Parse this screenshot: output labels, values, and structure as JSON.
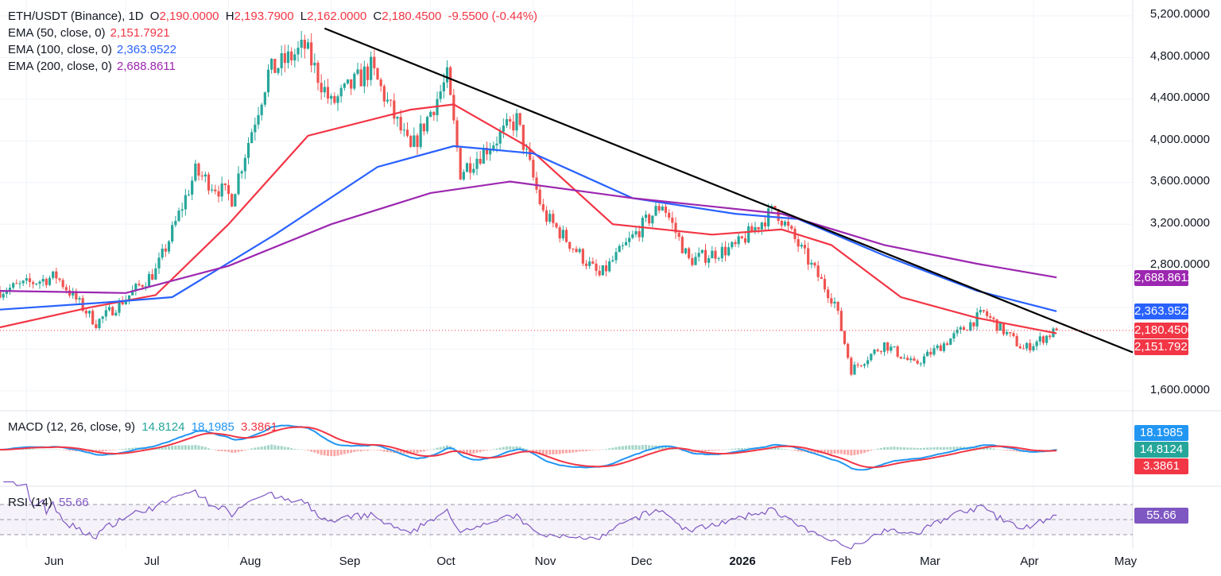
{
  "colors": {
    "up": "#26a69a",
    "down": "#ef5350",
    "ema50": "#f23645",
    "ema100": "#2962ff",
    "ema200": "#9c27b0",
    "trendline": "#000000",
    "macd": "#2196f3",
    "signal": "#f23645",
    "rsi": "#7e57c2"
  },
  "header": {
    "symbol": "ETH/USDT (Binance), 1D",
    "o_label": "O",
    "o": "2,190.0000",
    "h_label": "H",
    "h": "2,193.7900",
    "l_label": "L",
    "l": "2,162.0000",
    "c_label": "C",
    "c": "2,180.4500",
    "change": "-9.5500 (-0.44%)"
  },
  "indicators": {
    "ema50": {
      "label": "EMA (50, close, 0)",
      "value": "2,151.7921"
    },
    "ema100": {
      "label": "EMA (100, close, 0)",
      "value": "2,363.9522"
    },
    "ema200": {
      "label": "EMA (200, close, 0)",
      "value": "2,688.8611"
    },
    "macd": {
      "label": "MACD (12, 26, close, 9)",
      "hist": "14.8124",
      "macd": "18.1985",
      "signal": "3.3861"
    },
    "rsi": {
      "label": "RSI (14)",
      "value": "55.66"
    }
  },
  "price_axis": [
    "5,200.0000",
    "4,800.0000",
    "4,400.0000",
    "4,000.0000",
    "3,600.0000",
    "3,200.0000",
    "2,800.0000",
    "1,600.0000"
  ],
  "badges": {
    "ema200": "2,688.8611",
    "ema100": "2,363.9522",
    "close": "2,180.4500",
    "ema50": "2,151.7921",
    "macd": "18.1985",
    "hist": "14.8124",
    "signal": "3.3861",
    "rsi": "55.66"
  },
  "time_axis": [
    "Jun",
    "Jul",
    "Aug",
    "Sep",
    "Oct",
    "Nov",
    "Dec",
    "2026",
    "Feb",
    "Mar",
    "Apr",
    "May"
  ],
  "chart_data": {
    "type": "candlestick",
    "title": "ETH/USDT (Binance), 1D",
    "y_range": [
      1500,
      5250
    ],
    "x_range": [
      "2025-05-24",
      "2026-05-01"
    ],
    "close": {
      "value": 2180.45
    },
    "price_points": [
      [
        "2025-05-24",
        2560
      ],
      [
        "2025-06-10",
        2700
      ],
      [
        "2025-06-22",
        2250
      ],
      [
        "2025-07-01",
        2490
      ],
      [
        "2025-07-10",
        2750
      ],
      [
        "2025-07-14",
        3050
      ],
      [
        "2025-07-22",
        3700
      ],
      [
        "2025-08-02",
        3450
      ],
      [
        "2025-08-13",
        4650
      ],
      [
        "2025-08-24",
        4900
      ],
      [
        "2025-09-01",
        4350
      ],
      [
        "2025-09-13",
        4700
      ],
      [
        "2025-09-25",
        3900
      ],
      [
        "2025-10-06",
        4600
      ],
      [
        "2025-10-10",
        3700
      ],
      [
        "2025-10-27",
        4200
      ],
      [
        "2025-11-04",
        3300
      ],
      [
        "2025-11-21",
        2700
      ],
      [
        "2025-12-03",
        3150
      ],
      [
        "2025-12-10",
        3400
      ],
      [
        "2025-12-18",
        2850
      ],
      [
        "2026-01-01",
        2980
      ],
      [
        "2026-01-13",
        3350
      ],
      [
        "2026-01-22",
        2900
      ],
      [
        "2026-01-31",
        2450
      ],
      [
        "2026-02-05",
        1800
      ],
      [
        "2026-02-15",
        2050
      ],
      [
        "2026-02-24",
        1850
      ],
      [
        "2026-03-07",
        2100
      ],
      [
        "2026-03-17",
        2350
      ],
      [
        "2026-03-29",
        2000
      ],
      [
        "2026-04-08",
        2180
      ]
    ],
    "series": [
      {
        "name": "EMA (50, close, 0)",
        "points": [
          [
            "2025-05-24",
            2210
          ],
          [
            "2025-06-20",
            2400
          ],
          [
            "2025-07-10",
            2520
          ],
          [
            "2025-08-01",
            3200
          ],
          [
            "2025-08-25",
            4050
          ],
          [
            "2025-09-25",
            4300
          ],
          [
            "2025-10-08",
            4350
          ],
          [
            "2025-10-30",
            3950
          ],
          [
            "2025-11-25",
            3200
          ],
          [
            "2025-12-25",
            3100
          ],
          [
            "2026-01-15",
            3150
          ],
          [
            "2026-01-30",
            3000
          ],
          [
            "2026-02-20",
            2500
          ],
          [
            "2026-03-15",
            2300
          ],
          [
            "2026-04-08",
            2152
          ]
        ]
      },
      {
        "name": "EMA (100, close, 0)",
        "points": [
          [
            "2025-05-24",
            2380
          ],
          [
            "2025-06-25",
            2450
          ],
          [
            "2025-07-15",
            2500
          ],
          [
            "2025-08-15",
            3100
          ],
          [
            "2025-09-15",
            3750
          ],
          [
            "2025-10-08",
            3950
          ],
          [
            "2025-11-01",
            3880
          ],
          [
            "2025-12-01",
            3450
          ],
          [
            "2026-01-01",
            3300
          ],
          [
            "2026-01-20",
            3250
          ],
          [
            "2026-02-15",
            2900
          ],
          [
            "2026-03-15",
            2560
          ],
          [
            "2026-04-08",
            2364
          ]
        ]
      },
      {
        "name": "EMA (200, close, 0)",
        "points": [
          [
            "2025-05-24",
            2560
          ],
          [
            "2025-07-01",
            2540
          ],
          [
            "2025-08-01",
            2800
          ],
          [
            "2025-09-01",
            3200
          ],
          [
            "2025-10-01",
            3500
          ],
          [
            "2025-10-25",
            3610
          ],
          [
            "2025-12-01",
            3450
          ],
          [
            "2026-01-15",
            3300
          ],
          [
            "2026-02-15",
            3000
          ],
          [
            "2026-03-15",
            2820
          ],
          [
            "2026-04-08",
            2689
          ]
        ]
      }
    ],
    "trendline": [
      [
        "2025-08-30",
        5080
      ],
      [
        "2026-05-01",
        1970
      ]
    ],
    "macd": {
      "macd": 18.1985,
      "signal": 3.3861,
      "histogram": 14.8124
    },
    "rsi": {
      "period": 14,
      "value": 55.66,
      "bands": [
        70,
        50,
        30
      ]
    }
  }
}
